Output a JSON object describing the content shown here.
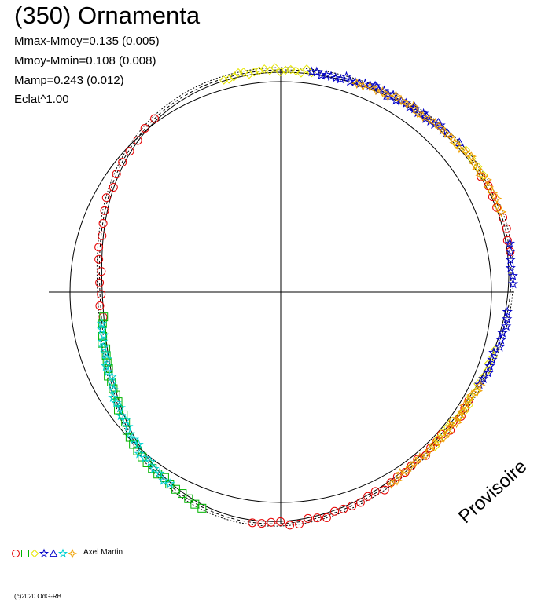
{
  "chart_data": {
    "type": "scatter",
    "title": "(350) Ornamenta",
    "stats": [
      "Mmax-Mmoy=0.135 (0.005)",
      "Mmoy-Mmin=0.108 (0.008)",
      "Mamp=0.243 (0.012)",
      "Eclat^1.00"
    ],
    "observer": "Axel Martin",
    "copyright": "(c)2020 OdG-RB",
    "watermark": "Provisoire",
    "marker_shapes": [
      "circle",
      "square",
      "diamond",
      "star",
      "triangle",
      "star",
      "star-diamond"
    ],
    "colors": {
      "red": "#e60000",
      "green": "#00b400",
      "yellow": "#e6e600",
      "blue": "#0000c8",
      "cyan": "#00d2d2",
      "orange": "#f0a000",
      "axis": "#000000",
      "model": "#000000"
    },
    "series": [
      {
        "marker": "circle",
        "color": "red",
        "arcs": [
          [
            126,
            188,
            18
          ],
          [
            263,
            330,
            30
          ],
          [
            10,
            30,
            8
          ]
        ]
      },
      {
        "marker": "square",
        "color": "green",
        "arcs": [
          [
            188,
            250,
            32
          ]
        ]
      },
      {
        "marker": "diamond",
        "color": "yellow",
        "arcs": [
          [
            82,
            105,
            18
          ],
          [
            30,
            40,
            5
          ],
          [
            315,
            345,
            16
          ]
        ]
      },
      {
        "marker": "star",
        "color": "blue",
        "arcs": [
          [
            45,
            82,
            30
          ],
          [
            335,
            355,
            12
          ],
          [
            2,
            12,
            6
          ]
        ]
      },
      {
        "marker": "triangle",
        "color": "blue",
        "arcs": [
          [
            40,
            65,
            8
          ]
        ]
      },
      {
        "marker": "star",
        "color": "cyan",
        "arcs": [
          [
            190,
            240,
            28
          ]
        ]
      },
      {
        "marker": "star-diamond",
        "color": "orange",
        "arcs": [
          [
            20,
            70,
            30
          ],
          [
            300,
            335,
            22
          ]
        ]
      }
    ],
    "model_curves": 3,
    "polar_circle": true,
    "grid": false,
    "legend": "bottom-left"
  }
}
